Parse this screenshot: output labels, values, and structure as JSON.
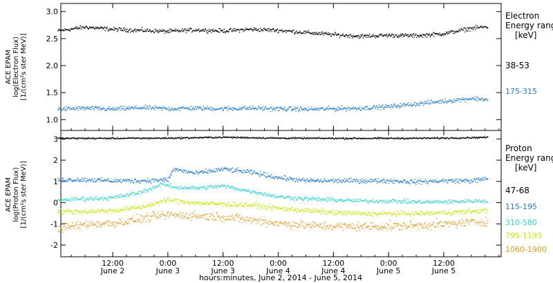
{
  "chart_data": [
    {
      "type": "scatter",
      "panel": "electron",
      "ylabel_lines": [
        "ACE EPAM",
        "log(Electron Flux)",
        "[1/(cm²s ster MeV)]"
      ],
      "ylim": [
        0.8,
        3.15
      ],
      "yticks": [
        1.0,
        1.5,
        2.0,
        2.5,
        3.0
      ],
      "ytick_labels": [
        "1.0",
        "1.5",
        "2.0",
        "2.5",
        "3.0"
      ],
      "legend_title": [
        "Electron",
        "Energy ranges",
        "[keV]"
      ],
      "series": [
        {
          "name": "38-53",
          "color": "#000000",
          "points": [
            [
              0.0,
              2.65
            ],
            [
              0.25,
              2.72
            ],
            [
              0.5,
              2.68
            ],
            [
              0.75,
              2.66
            ],
            [
              1.0,
              2.64
            ],
            [
              1.25,
              2.67
            ],
            [
              1.5,
              2.65
            ],
            [
              1.75,
              2.68
            ],
            [
              2.0,
              2.66
            ],
            [
              2.25,
              2.62
            ],
            [
              2.5,
              2.58
            ],
            [
              2.75,
              2.55
            ],
            [
              3.0,
              2.57
            ],
            [
              3.25,
              2.56
            ],
            [
              3.5,
              2.6
            ],
            [
              3.75,
              2.7
            ],
            [
              3.9,
              2.73
            ]
          ]
        },
        {
          "name": "175-315",
          "color": "#1f77d0",
          "points": [
            [
              0.0,
              1.2
            ],
            [
              0.25,
              1.22
            ],
            [
              0.5,
              1.2
            ],
            [
              0.75,
              1.23
            ],
            [
              1.0,
              1.21
            ],
            [
              1.25,
              1.22
            ],
            [
              1.5,
              1.21
            ],
            [
              1.75,
              1.22
            ],
            [
              2.0,
              1.21
            ],
            [
              2.25,
              1.2
            ],
            [
              2.5,
              1.21
            ],
            [
              2.75,
              1.22
            ],
            [
              3.0,
              1.25
            ],
            [
              3.25,
              1.3
            ],
            [
              3.5,
              1.35
            ],
            [
              3.75,
              1.4
            ],
            [
              3.9,
              1.38
            ]
          ]
        }
      ]
    },
    {
      "type": "scatter",
      "panel": "proton",
      "ylabel_lines": [
        "ACE EPAM",
        "log(Proton Flux)",
        "[1/(cm²s ster MeV)]"
      ],
      "ylim": [
        -2.55,
        3.4
      ],
      "yticks": [
        -2,
        -1,
        0,
        1,
        2,
        3
      ],
      "ytick_labels": [
        "-2",
        "-1",
        "0",
        "1",
        "2",
        "3"
      ],
      "legend_title": [
        "Proton",
        "Energy ranges",
        "[keV]"
      ],
      "series": [
        {
          "name": "47-68",
          "color": "#000000",
          "points": [
            [
              0.0,
              3.05
            ],
            [
              0.5,
              3.05
            ],
            [
              1.0,
              3.06
            ],
            [
              1.25,
              3.08
            ],
            [
              1.5,
              3.1
            ],
            [
              2.0,
              3.06
            ],
            [
              2.5,
              3.05
            ],
            [
              3.0,
              3.05
            ],
            [
              3.5,
              3.06
            ],
            [
              3.9,
              3.1
            ]
          ]
        },
        {
          "name": "115-195",
          "color": "#1f77d0",
          "points": [
            [
              0.0,
              1.1
            ],
            [
              0.25,
              1.1
            ],
            [
              0.5,
              1.05
            ],
            [
              0.75,
              1.05
            ],
            [
              1.0,
              1.1
            ],
            [
              1.05,
              1.6
            ],
            [
              1.25,
              1.4
            ],
            [
              1.5,
              1.6
            ],
            [
              1.75,
              1.45
            ],
            [
              2.0,
              1.2
            ],
            [
              2.25,
              1.05
            ],
            [
              2.5,
              1.05
            ],
            [
              2.75,
              1.05
            ],
            [
              3.0,
              1.05
            ],
            [
              3.25,
              1.0
            ],
            [
              3.5,
              1.05
            ],
            [
              3.75,
              1.05
            ],
            [
              3.9,
              1.15
            ]
          ]
        },
        {
          "name": "310-580",
          "color": "#2dd2d2",
          "points": [
            [
              0.0,
              0.15
            ],
            [
              0.25,
              0.2
            ],
            [
              0.5,
              0.25
            ],
            [
              0.75,
              0.5
            ],
            [
              0.95,
              0.9
            ],
            [
              1.05,
              0.75
            ],
            [
              1.25,
              0.7
            ],
            [
              1.5,
              0.8
            ],
            [
              1.75,
              0.55
            ],
            [
              2.0,
              0.3
            ],
            [
              2.25,
              0.2
            ],
            [
              2.5,
              0.15
            ],
            [
              2.75,
              0.1
            ],
            [
              3.0,
              0.1
            ],
            [
              3.25,
              0.05
            ],
            [
              3.5,
              0.05
            ],
            [
              3.75,
              0.1
            ],
            [
              3.9,
              0.1
            ]
          ]
        },
        {
          "name": "795-1193",
          "color": "#c8e600",
          "points": [
            [
              0.0,
              -0.4
            ],
            [
              0.25,
              -0.4
            ],
            [
              0.5,
              -0.35
            ],
            [
              0.75,
              -0.2
            ],
            [
              1.0,
              0.15
            ],
            [
              1.25,
              0.0
            ],
            [
              1.5,
              -0.05
            ],
            [
              1.75,
              -0.1
            ],
            [
              2.0,
              -0.25
            ],
            [
              2.25,
              -0.35
            ],
            [
              2.5,
              -0.45
            ],
            [
              2.75,
              -0.5
            ],
            [
              3.0,
              -0.5
            ],
            [
              3.25,
              -0.5
            ],
            [
              3.5,
              -0.45
            ],
            [
              3.75,
              -0.4
            ],
            [
              3.9,
              -0.35
            ]
          ]
        },
        {
          "name": "1060-1900",
          "color": "#e8961e",
          "points": [
            [
              0.0,
              -1.2
            ],
            [
              0.25,
              -1.0
            ],
            [
              0.5,
              -0.95
            ],
            [
              0.75,
              -0.75
            ],
            [
              1.0,
              -0.55
            ],
            [
              1.25,
              -0.6
            ],
            [
              1.5,
              -0.65
            ],
            [
              1.75,
              -0.8
            ],
            [
              2.0,
              -0.95
            ],
            [
              2.25,
              -1.05
            ],
            [
              2.5,
              -1.1
            ],
            [
              2.75,
              -1.1
            ],
            [
              3.0,
              -1.1
            ],
            [
              3.25,
              -1.05
            ],
            [
              3.5,
              -1.0
            ],
            [
              3.75,
              -0.9
            ],
            [
              3.9,
              -0.85
            ]
          ]
        }
      ]
    }
  ],
  "x_axis": {
    "unit_note": "x in days from 0:00 June 2, 2014",
    "xlim": [
      0.03,
      4.02
    ],
    "ticks": [
      {
        "x": 0.5,
        "time": "12:00",
        "date": "June 2"
      },
      {
        "x": 1.0,
        "time": "0:00",
        "date": "June 3"
      },
      {
        "x": 1.5,
        "time": "12:00",
        "date": "June 3"
      },
      {
        "x": 2.0,
        "time": "0:00",
        "date": "June 4"
      },
      {
        "x": 2.5,
        "time": "12:00",
        "date": "June 4"
      },
      {
        "x": 3.0,
        "time": "0:00",
        "date": "June 5"
      },
      {
        "x": 3.5,
        "time": "12:00",
        "date": "June 5"
      }
    ],
    "minor_step": 0.125,
    "label": "hours:minutes, June  2, 2014 - June  5, 2014"
  }
}
